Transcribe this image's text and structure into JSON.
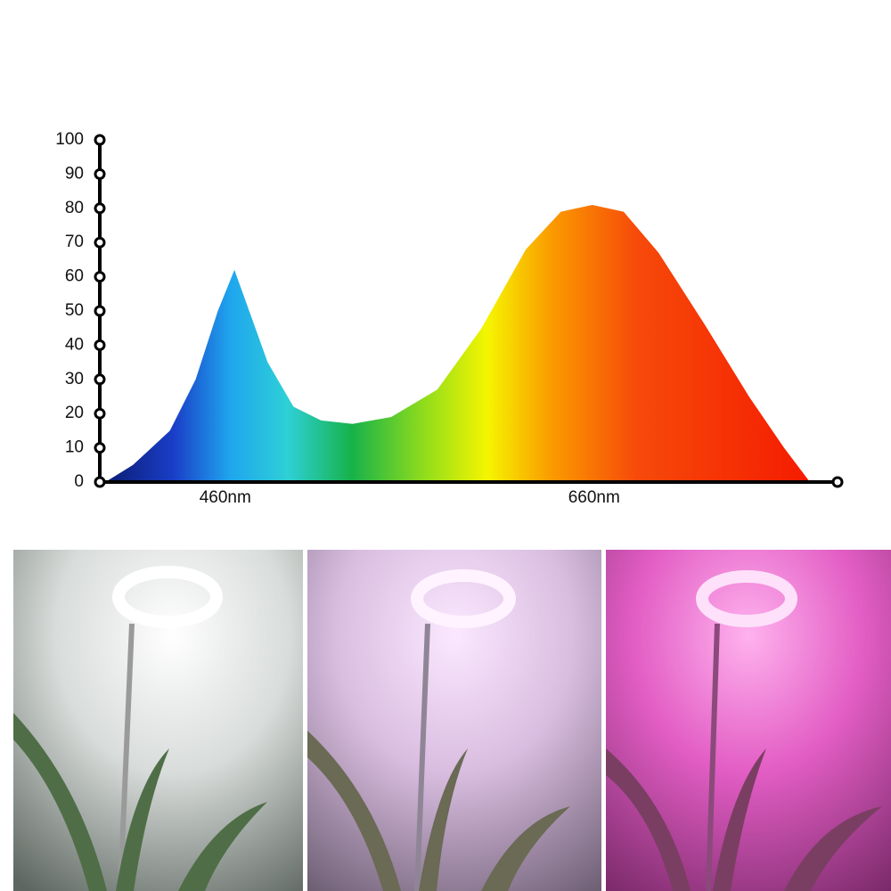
{
  "chart_data": {
    "type": "area",
    "x": [
      395,
      410,
      430,
      444,
      456,
      465,
      473,
      483,
      497,
      512,
      529,
      550,
      575,
      599,
      623,
      642,
      659,
      676,
      695,
      720,
      744,
      763,
      777
    ],
    "values": [
      0,
      5,
      15,
      30,
      50,
      62,
      50,
      35,
      22,
      18,
      17,
      19,
      27,
      45,
      68,
      79,
      81,
      79,
      67,
      46,
      25,
      10,
      0
    ],
    "xlim": [
      392,
      792
    ],
    "xticks": [
      {
        "value": 460,
        "label": "460nm"
      },
      {
        "value": 660,
        "label": "660nm"
      }
    ],
    "ylim": [
      0,
      100
    ],
    "yticks": [
      0,
      10,
      20,
      30,
      40,
      50,
      60,
      70,
      80,
      90,
      100
    ]
  }
}
